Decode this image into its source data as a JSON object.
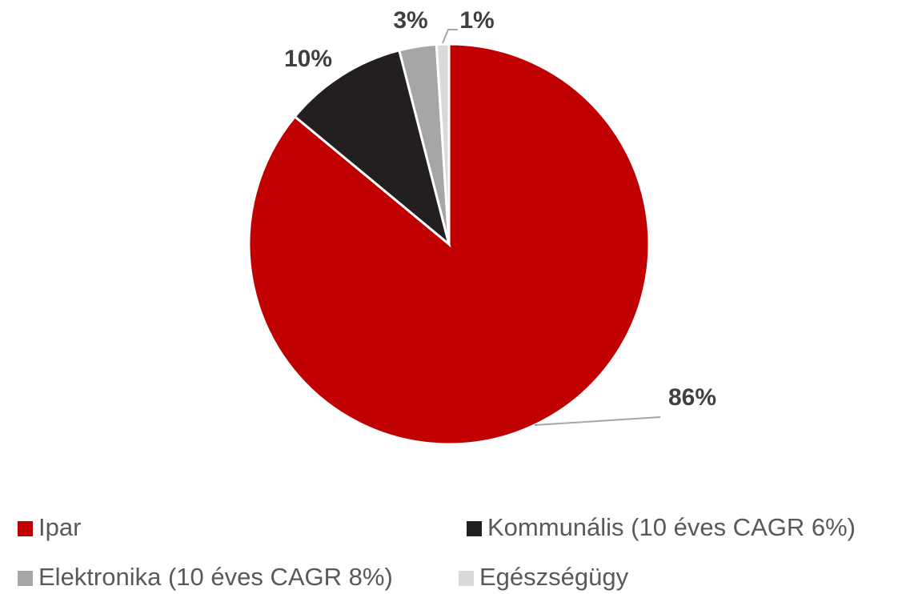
{
  "chart_data": {
    "type": "pie",
    "categories": [
      "Ipar",
      "Kommunális (10 éves CAGR 6%)",
      "Elektronika (10 éves CAGR 8%)",
      "Egészségügy"
    ],
    "values": [
      86,
      10,
      3,
      1
    ],
    "value_labels": [
      "86%",
      "10%",
      "3%",
      "1%"
    ],
    "colors": [
      "#c00000",
      "#231f20",
      "#a6a6a6",
      "#d9d9d9"
    ],
    "legend": "bottom"
  }
}
